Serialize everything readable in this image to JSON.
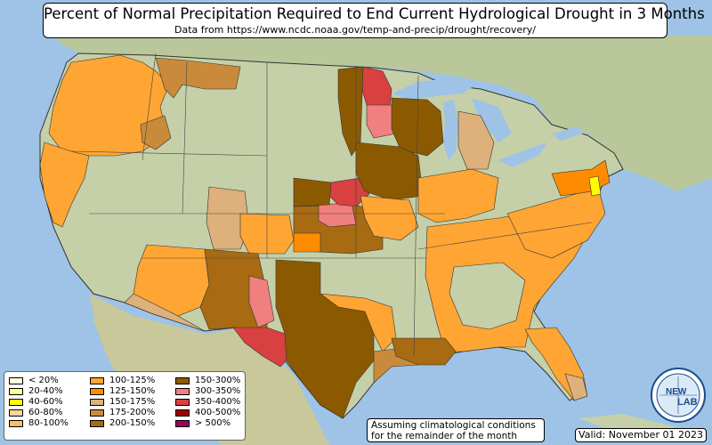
{
  "header": {
    "title": "Percent of Normal Precipitation Required to End Current Hydrological Drought in 3 Months",
    "subtitle": "Data from https://www.ncdc.noaa.gov/temp-and-precip/drought/recovery/"
  },
  "legend": {
    "items": [
      {
        "label": "< 20%",
        "color": "#ffffe6"
      },
      {
        "label": "20-40%",
        "color": "#ffff99"
      },
      {
        "label": "40-60%",
        "color": "#ffff00"
      },
      {
        "label": "60-80%",
        "color": "#fdd49e"
      },
      {
        "label": "80-100%",
        "color": "#fdbb6a"
      },
      {
        "label": "100-125%",
        "color": "#ffa533"
      },
      {
        "label": "125-150%",
        "color": "#ff8c00"
      },
      {
        "label": "150-175%",
        "color": "#ddb07c"
      },
      {
        "label": "175-200%",
        "color": "#c98b3b"
      },
      {
        "label": "200-150%",
        "color": "#a86b12"
      },
      {
        "label": "150-300%",
        "color": "#8b5a00"
      },
      {
        "label": "300-350%",
        "color": "#f08080"
      },
      {
        "label": "350-400%",
        "color": "#d94040"
      },
      {
        "label": "400-500%",
        "color": "#a00000"
      },
      {
        "label": "> 500%",
        "color": "#a0005a"
      }
    ]
  },
  "footer": {
    "note_line1": "Assuming climatological conditions",
    "note_line2": "for the remainder of the month",
    "valid": "Valid: November 01 2023"
  },
  "logo": {
    "line1": "NEW",
    "line2": "LAB"
  },
  "colors": {
    "land": "#c5d0a8",
    "land_dark": "#b8c794",
    "water": "#9ec3e6",
    "border": "#333333",
    "orange": "#ffa533",
    "dark_orange": "#ff8c00",
    "tan": "#ddb07c",
    "brown_light": "#c98b3b",
    "brown": "#a86b12",
    "brown_dark": "#8b5a00",
    "pink": "#f08080",
    "red": "#d94040"
  }
}
